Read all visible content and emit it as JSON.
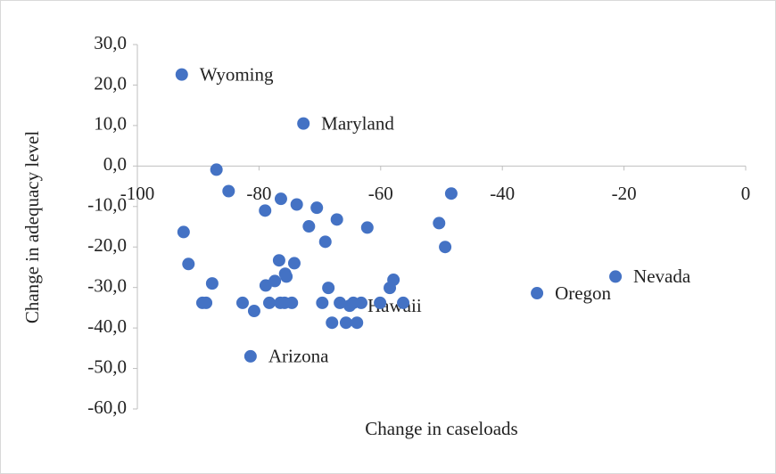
{
  "chart_data": {
    "type": "scatter",
    "xlabel": "Change in caseloads",
    "ylabel": "Change in adequacy level",
    "xlim": [
      -100,
      0
    ],
    "ylim": [
      -60,
      30
    ],
    "xticks": [
      -100,
      -80,
      -60,
      -40,
      -20,
      0
    ],
    "yticks": [
      {
        "value": -60,
        "label": "-60,0"
      },
      {
        "value": -50,
        "label": "-50,0"
      },
      {
        "value": -40,
        "label": "-40,0"
      },
      {
        "value": -30,
        "label": "-30,0"
      },
      {
        "value": -20,
        "label": "-20,0"
      },
      {
        "value": -10,
        "label": "-10,0"
      },
      {
        "value": 0,
        "label": "0,0"
      },
      {
        "value": 10,
        "label": "10,0"
      },
      {
        "value": 20,
        "label": "20,0"
      },
      {
        "value": 30,
        "label": "30,0"
      }
    ],
    "series": [
      {
        "color": "#4472c4",
        "x": [
          -92.7,
          -72.7,
          -87.0,
          -85.0,
          -48.4,
          -79.0,
          -76.4,
          -73.8,
          -70.5,
          -67.2,
          -71.8,
          -62.2,
          -50.4,
          -69.1,
          -49.4,
          -92.4,
          -91.6,
          -76.7,
          -74.2,
          -75.7,
          -75.5,
          -77.4,
          -78.9,
          -87.7,
          -68.6,
          -57.9,
          -58.5,
          -89.3,
          -88.7,
          -82.7,
          -78.3,
          -76.5,
          -75.8,
          -74.6,
          -69.6,
          -66.7,
          -65.1,
          -64.5,
          -63.2,
          -60.1,
          -56.3,
          -80.8,
          -68.0,
          -65.7,
          -63.9,
          -81.4,
          -34.3,
          -21.4
        ],
        "values": [
          22.6,
          10.5,
          -0.9,
          -6.2,
          -6.8,
          -11.0,
          -8.1,
          -9.5,
          -10.3,
          -13.2,
          -14.9,
          -15.2,
          -14.1,
          -18.7,
          -20.0,
          -16.3,
          -24.2,
          -23.3,
          -24.0,
          -26.6,
          -27.3,
          -28.4,
          -29.5,
          -29.0,
          -30.1,
          -28.1,
          -30.1,
          -33.8,
          -33.8,
          -33.8,
          -33.8,
          -33.8,
          -33.8,
          -33.8,
          -33.8,
          -33.8,
          -34.5,
          -33.8,
          -33.8,
          -33.8,
          -33.8,
          -35.8,
          -38.7,
          -38.7,
          -38.7,
          -47.0,
          -31.4,
          -27.3
        ],
        "labels": [
          "Wyoming",
          "Maryland",
          null,
          null,
          null,
          null,
          null,
          null,
          null,
          null,
          null,
          null,
          null,
          null,
          null,
          null,
          null,
          null,
          null,
          null,
          null,
          null,
          null,
          null,
          null,
          null,
          null,
          null,
          null,
          null,
          null,
          null,
          null,
          null,
          null,
          null,
          "Hawaii",
          null,
          null,
          null,
          null,
          null,
          null,
          null,
          null,
          "Arizona",
          "Oregon",
          "Nevada"
        ]
      }
    ]
  }
}
